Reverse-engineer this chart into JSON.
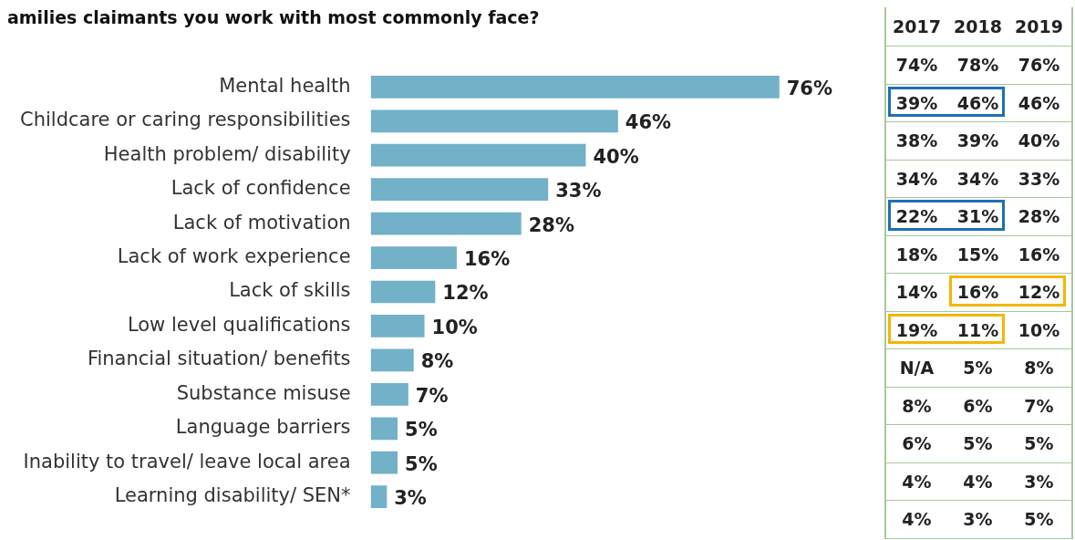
{
  "chart_data": [
    {
      "type": "bar",
      "orientation": "horizontal",
      "title": "amilies claimants you work with most commonly face?",
      "categories": [
        "Mental health",
        "Childcare or caring responsibilities",
        "Health problem/ disability",
        "Lack of confidence",
        "Lack of motivation",
        "Lack of work experience",
        "Lack of skills",
        "Low level qualifications",
        "Financial situation/ benefits",
        "Substance misuse",
        "Language barriers",
        "Inability to travel/ leave local area",
        "Learning disability/ SEN*"
      ],
      "values": [
        76,
        46,
        40,
        33,
        28,
        16,
        12,
        10,
        8,
        7,
        5,
        5,
        3
      ],
      "value_labels": [
        "76%",
        "46%",
        "40%",
        "33%",
        "28%",
        "16%",
        "12%",
        "10%",
        "8%",
        "7%",
        "5%",
        "5%",
        "3%"
      ],
      "color": "#72b1c8",
      "tick_labels": "y"
    },
    {
      "type": "other",
      "categories": [
        "2017",
        "2018",
        "2019"
      ],
      "cell_labels": [
        [
          "74%",
          "78%",
          "76%"
        ],
        [
          "39%",
          "46%",
          "46%"
        ],
        [
          "38%",
          "39%",
          "40%"
        ],
        [
          "34%",
          "34%",
          "33%"
        ],
        [
          "22%",
          "31%",
          "28%"
        ],
        [
          "18%",
          "15%",
          "16%"
        ],
        [
          "14%",
          "16%",
          "12%"
        ],
        [
          "19%",
          "11%",
          "10%"
        ],
        [
          "N/A",
          "5%",
          "8%"
        ],
        [
          "8%",
          "6%",
          "7%"
        ],
        [
          "6%",
          "5%",
          "5%"
        ],
        [
          "4%",
          "4%",
          "3%"
        ],
        [
          "4%",
          "3%",
          "5%"
        ]
      ]
    }
  ]
}
